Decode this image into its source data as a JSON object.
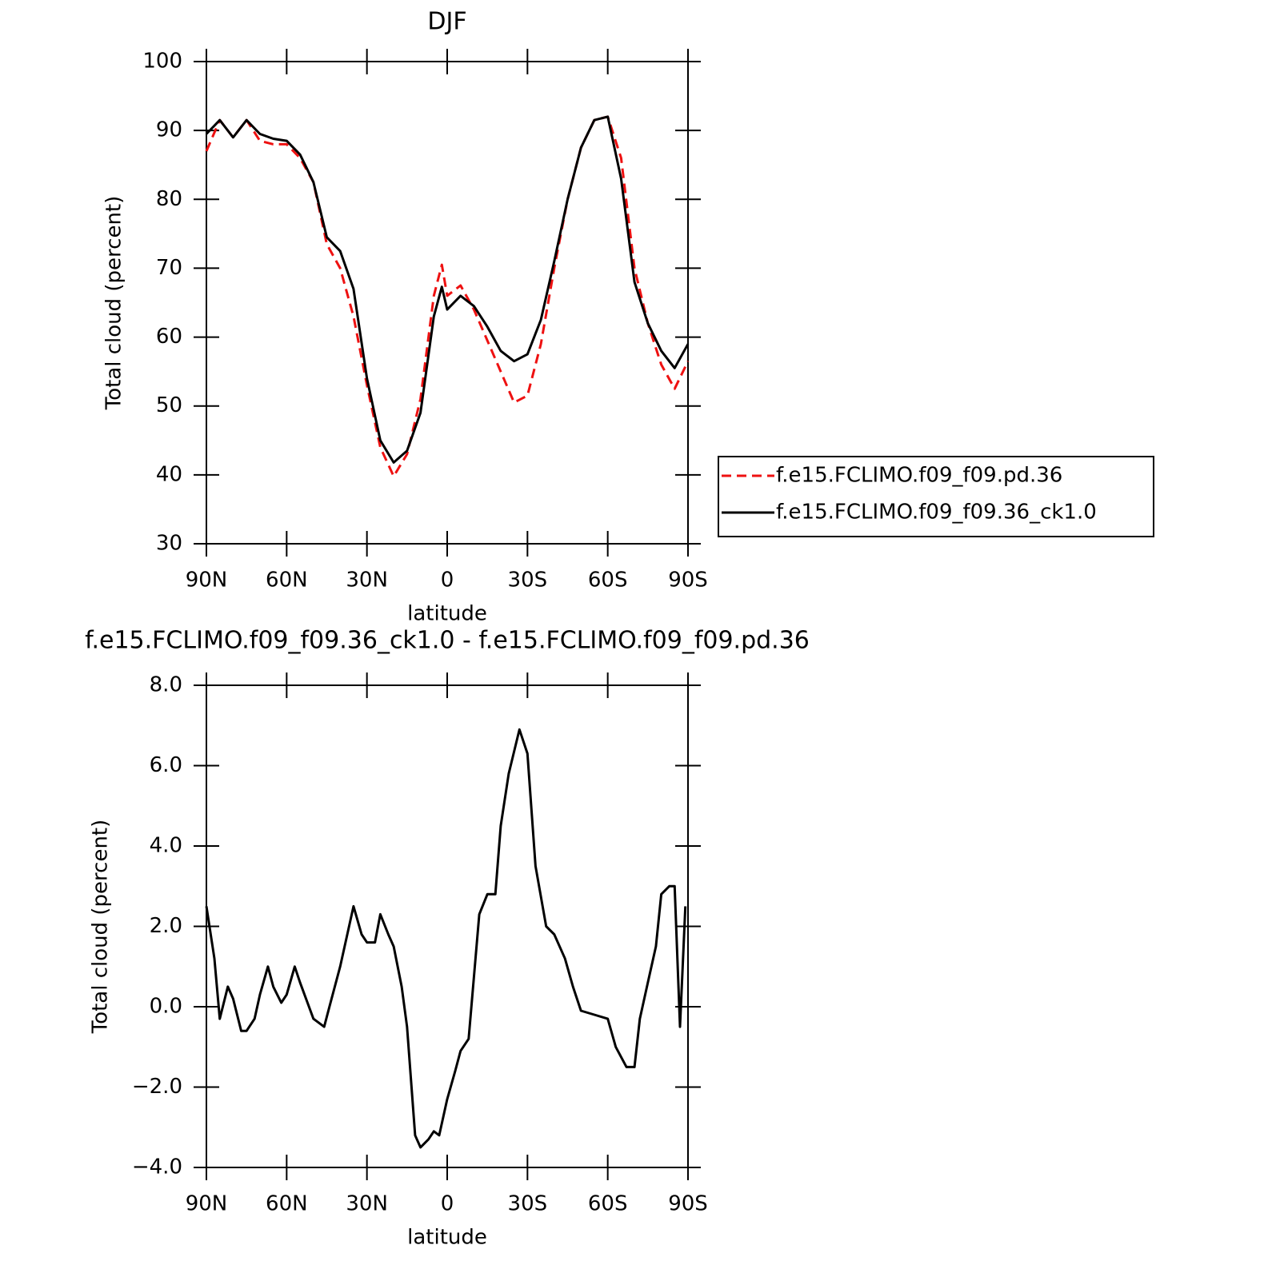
{
  "chart_data": [
    {
      "type": "line",
      "title": "DJF",
      "x_label": "latitude",
      "y_label": "Total cloud (percent)",
      "x": [
        90,
        85,
        80,
        75,
        70,
        65,
        60,
        55,
        50,
        45,
        40,
        35,
        30,
        25,
        20,
        15,
        10,
        5,
        2,
        0,
        -5,
        -10,
        -15,
        -20,
        -25,
        -30,
        -35,
        -40,
        -45,
        -50,
        -55,
        -60,
        -65,
        -70,
        -75,
        -80,
        -85,
        -90
      ],
      "series": [
        {
          "name": "f.e15.FCLIMO.f09_f09.pd.36",
          "color": "#ee1111",
          "style": "dashed",
          "values": [
            87,
            91.5,
            89,
            91.5,
            88.5,
            88,
            88,
            86,
            82.5,
            73.5,
            70,
            63,
            53,
            44,
            39.8,
            43,
            51,
            66,
            70.5,
            66,
            67.5,
            64,
            59.5,
            55,
            50.5,
            51.5,
            59,
            70,
            80,
            87.5,
            91.5,
            92,
            86,
            70,
            62,
            56,
            52.5,
            56.5
          ]
        },
        {
          "name": "f.e15.FCLIMO.f09_f09.36_ck1.0",
          "color": "#000000",
          "style": "solid",
          "values": [
            89.5,
            91.5,
            89,
            91.5,
            89.5,
            88.8,
            88.5,
            86.5,
            82.5,
            74.5,
            72.5,
            67,
            54,
            45,
            41.8,
            43.5,
            49,
            63,
            67.3,
            64,
            66,
            64.5,
            61.5,
            58,
            56.5,
            57.5,
            62.5,
            71,
            80,
            87.5,
            91.5,
            92,
            83,
            68,
            62,
            58,
            55.5,
            59
          ]
        }
      ],
      "xlim": [
        90,
        -90
      ],
      "xticks": [
        {
          "value": 90,
          "label": "90N"
        },
        {
          "value": 60,
          "label": "60N"
        },
        {
          "value": 30,
          "label": "30N"
        },
        0,
        {
          "value": -30,
          "label": "30S"
        },
        {
          "value": -60,
          "label": "60S"
        },
        {
          "value": -90,
          "label": "90S"
        }
      ],
      "ylim": [
        30,
        100
      ],
      "yticks": [
        30,
        40,
        50,
        60,
        70,
        80,
        90,
        100
      ],
      "legend": "right"
    },
    {
      "type": "line",
      "title": "f.e15.FCLIMO.f09_f09.36_ck1.0 - f.e15.FCLIMO.f09_f09.pd.36",
      "x_label": "latitude",
      "y_label": "Total cloud (percent)",
      "x": [
        90,
        87,
        85,
        82,
        80,
        77,
        75,
        72,
        70,
        67,
        65,
        62,
        60,
        57,
        55,
        50,
        46,
        44,
        40,
        35,
        32,
        30,
        27,
        25,
        22,
        20,
        17,
        15,
        12,
        10,
        7,
        5,
        3,
        0,
        -3,
        -5,
        -8,
        -12,
        -15,
        -18,
        -20,
        -23,
        -27,
        -30,
        -33,
        -37,
        -40,
        -44,
        -47,
        -50,
        -55,
        -60,
        -63,
        -67,
        -70,
        -72,
        -75,
        -78,
        -80,
        -83,
        -85,
        -87,
        -89
      ],
      "series": [
        {
          "color": "#000000",
          "style": "solid",
          "values": [
            2.5,
            1.2,
            -0.3,
            0.5,
            0.2,
            -0.6,
            -0.6,
            -0.3,
            0.3,
            1.0,
            0.5,
            0.1,
            0.3,
            1.0,
            0.6,
            -0.3,
            -0.5,
            0,
            1.0,
            2.5,
            1.8,
            1.6,
            1.6,
            2.3,
            1.8,
            1.5,
            0.5,
            -0.5,
            -3.2,
            -3.5,
            -3.3,
            -3.1,
            -3.2,
            -2.3,
            -1.6,
            -1.1,
            -0.8,
            2.3,
            2.8,
            2.8,
            4.5,
            5.8,
            6.9,
            6.3,
            3.5,
            2.0,
            1.8,
            1.2,
            0.5,
            -0.1,
            -0.2,
            -0.3,
            -1.0,
            -1.5,
            -1.5,
            -0.3,
            0.6,
            1.5,
            2.8,
            3.0,
            3.0,
            -0.5,
            2.5
          ]
        }
      ],
      "xlim": [
        90,
        -90
      ],
      "xticks": [
        {
          "value": 90,
          "label": "90N"
        },
        {
          "value": 60,
          "label": "60N"
        },
        {
          "value": 30,
          "label": "30N"
        },
        0,
        {
          "value": -30,
          "label": "30S"
        },
        {
          "value": -60,
          "label": "60S"
        },
        {
          "value": -90,
          "label": "90S"
        }
      ],
      "ylim": [
        -4,
        8
      ],
      "yticks": [
        {
          "value": -4,
          "label": "−4.0"
        },
        {
          "value": -2,
          "label": "−2.0"
        },
        {
          "value": 0,
          "label": "0.0"
        },
        {
          "value": 2,
          "label": "2.0"
        },
        {
          "value": 4,
          "label": "4.0"
        },
        {
          "value": 6,
          "label": "6.0"
        },
        {
          "value": 8,
          "label": "8.0"
        }
      ]
    }
  ]
}
